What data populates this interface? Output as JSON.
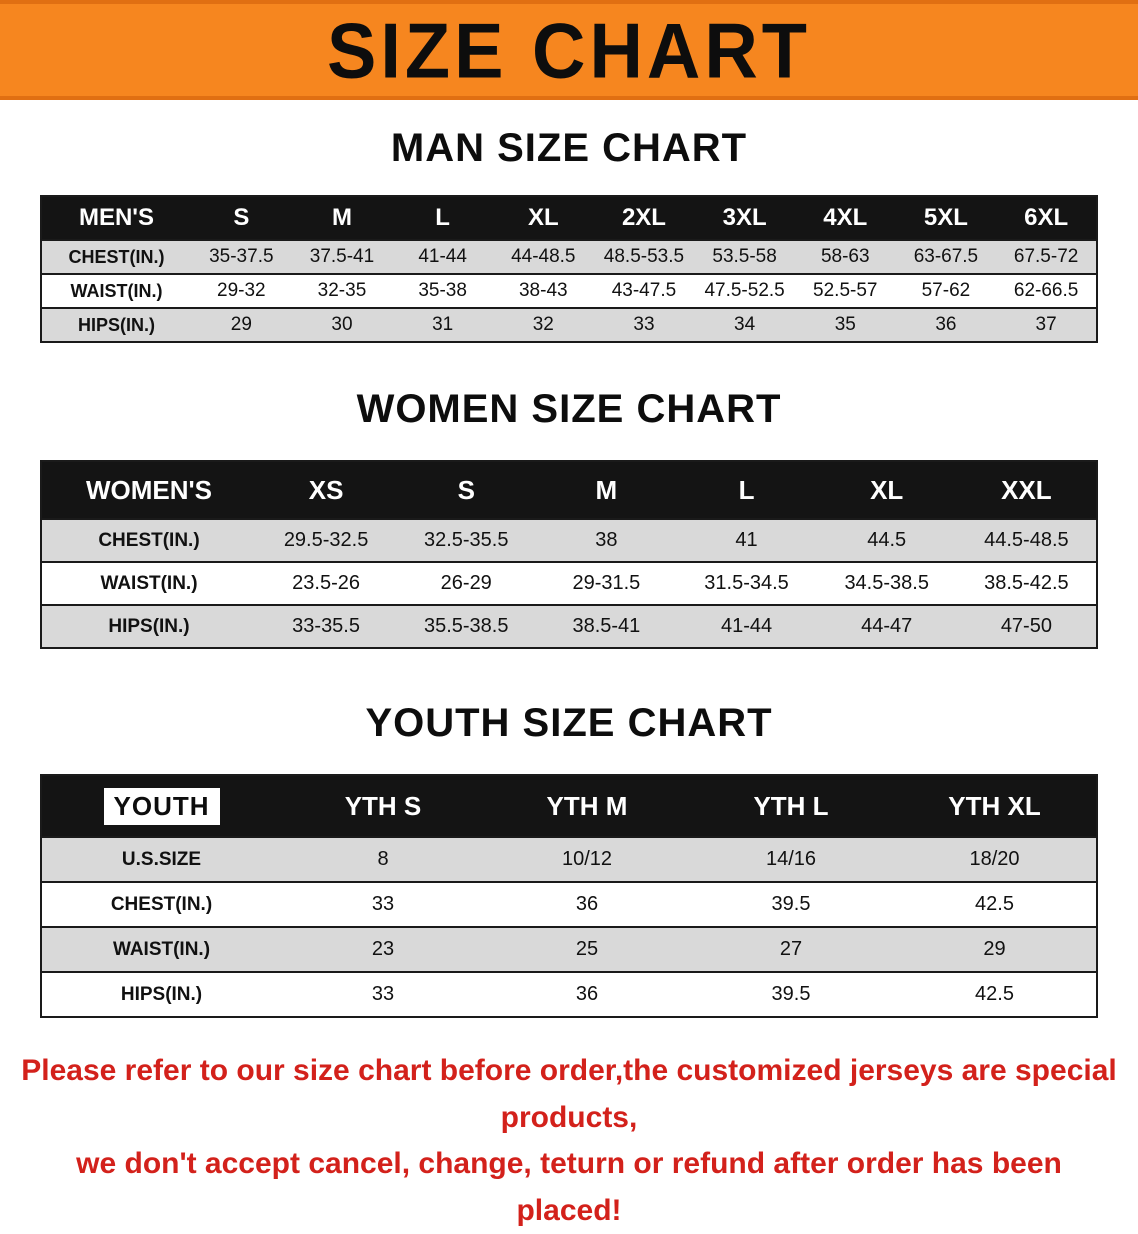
{
  "banner": {
    "title": "SIZE CHART",
    "bg_color": "#f6861f"
  },
  "man": {
    "heading": "MAN SIZE CHART",
    "header": {
      "label": "MEN'S",
      "cols": [
        "S",
        "M",
        "L",
        "XL",
        "2XL",
        "3XL",
        "4XL",
        "5XL",
        "6XL"
      ]
    },
    "rows": [
      {
        "label": "CHEST(IN.)",
        "values": [
          "35-37.5",
          "37.5-41",
          "41-44",
          "44-48.5",
          "48.5-53.5",
          "53.5-58",
          "58-63",
          "63-67.5",
          "67.5-72"
        ]
      },
      {
        "label": "WAIST(IN.)",
        "values": [
          "29-32",
          "32-35",
          "35-38",
          "38-43",
          "43-47.5",
          "47.5-52.5",
          "52.5-57",
          "57-62",
          "62-66.5"
        ]
      },
      {
        "label": "HIPS(IN.)",
        "values": [
          "29",
          "30",
          "31",
          "32",
          "33",
          "34",
          "35",
          "36",
          "37"
        ]
      }
    ]
  },
  "women": {
    "heading": "WOMEN SIZE CHART",
    "header": {
      "label": "WOMEN'S",
      "cols": [
        "XS",
        "S",
        "M",
        "L",
        "XL",
        "XXL"
      ]
    },
    "rows": [
      {
        "label": "CHEST(IN.)",
        "values": [
          "29.5-32.5",
          "32.5-35.5",
          "38",
          "41",
          "44.5",
          "44.5-48.5"
        ]
      },
      {
        "label": "WAIST(IN.)",
        "values": [
          "23.5-26",
          "26-29",
          "29-31.5",
          "31.5-34.5",
          "34.5-38.5",
          "38.5-42.5"
        ]
      },
      {
        "label": "HIPS(IN.)",
        "values": [
          "33-35.5",
          "35.5-38.5",
          "38.5-41",
          "41-44",
          "44-47",
          "47-50"
        ]
      }
    ]
  },
  "youth": {
    "heading": "YOUTH SIZE CHART",
    "header": {
      "label": "YOUTH",
      "cols": [
        "YTH S",
        "YTH M",
        "YTH L",
        "YTH XL"
      ]
    },
    "rows": [
      {
        "label": "U.S.SIZE",
        "values": [
          "8",
          "10/12",
          "14/16",
          "18/20"
        ]
      },
      {
        "label": "CHEST(IN.)",
        "values": [
          "33",
          "36",
          "39.5",
          "42.5"
        ]
      },
      {
        "label": "WAIST(IN.)",
        "values": [
          "23",
          "25",
          "27",
          "29"
        ]
      },
      {
        "label": "HIPS(IN.)",
        "values": [
          "33",
          "36",
          "39.5",
          "42.5"
        ]
      }
    ]
  },
  "footer": {
    "line1": "Please refer to our size chart before order,the customized jerseys are special products,",
    "line2": "we don't accept cancel, change, teturn or refund after order has been placed!"
  },
  "colors": {
    "banner_orange": "#f6861f",
    "header_black": "#141414",
    "row_gray": "#d9d9d9",
    "footer_red": "#d3211b"
  }
}
